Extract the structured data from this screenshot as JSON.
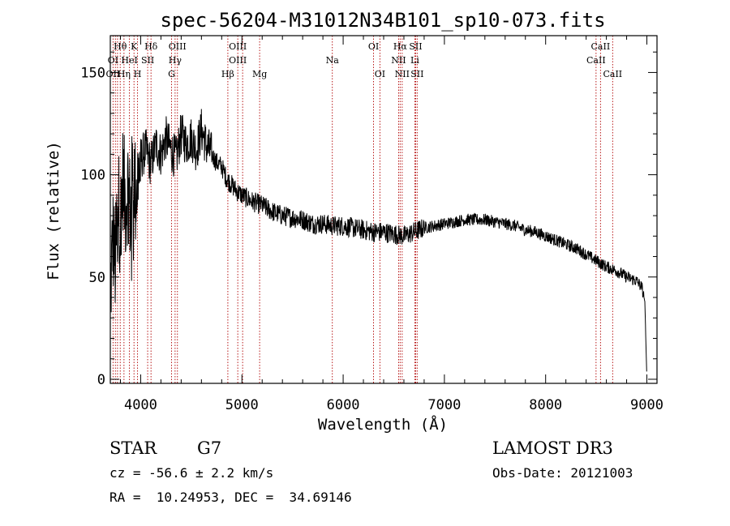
{
  "chart_data": {
    "type": "line",
    "title": "spec-56204-M31012N34B101_sp10-073.fits",
    "xlabel": "Wavelength (Å)",
    "ylabel": "Flux (relative)",
    "xlim": [
      3700,
      9100
    ],
    "ylim": [
      -2,
      168
    ],
    "xticks": [
      4000,
      5000,
      6000,
      7000,
      8000,
      9000
    ],
    "yticks": [
      0,
      50,
      100,
      150
    ],
    "grid": false,
    "series": [
      {
        "name": "flux",
        "color": "#000000",
        "x": [
          3700,
          3725,
          3750,
          3775,
          3800,
          3825,
          3850,
          3875,
          3900,
          3925,
          3950,
          3975,
          4000,
          4050,
          4100,
          4150,
          4200,
          4250,
          4300,
          4350,
          4400,
          4450,
          4500,
          4550,
          4600,
          4650,
          4700,
          4750,
          4800,
          4850,
          4900,
          4950,
          5000,
          5100,
          5200,
          5300,
          5400,
          5500,
          5600,
          5700,
          5800,
          5900,
          6000,
          6100,
          6200,
          6300,
          6400,
          6500,
          6600,
          6700,
          6800,
          6900,
          7000,
          7100,
          7200,
          7300,
          7400,
          7500,
          7600,
          7700,
          7800,
          7900,
          8000,
          8100,
          8200,
          8300,
          8400,
          8500,
          8600,
          8700,
          8800,
          8900,
          8950,
          8980,
          9000
        ],
        "y": [
          40,
          70,
          55,
          90,
          75,
          100,
          85,
          95,
          80,
          105,
          90,
          100,
          108,
          112,
          105,
          115,
          110,
          118,
          112,
          108,
          120,
          115,
          118,
          112,
          122,
          114,
          110,
          106,
          104,
          98,
          95,
          92,
          90,
          87,
          85,
          82,
          80,
          79,
          78,
          76,
          76,
          75,
          75,
          74,
          73,
          72,
          72,
          71,
          70,
          72,
          74,
          75,
          76,
          77,
          78,
          78,
          78,
          77,
          76,
          75,
          73,
          72,
          70,
          68,
          66,
          64,
          61,
          58,
          55,
          53,
          50,
          48,
          45,
          38,
          0
        ]
      }
    ],
    "line_labels": [
      {
        "label": "Hθ",
        "wavelength": 3798,
        "row": 0
      },
      {
        "label": "K",
        "wavelength": 3934,
        "row": 0
      },
      {
        "label": "Hδ",
        "wavelength": 4102,
        "row": 0
      },
      {
        "label": "OIII",
        "wavelength": 4363,
        "row": 0
      },
      {
        "label": "OIII",
        "wavelength": 4959,
        "row": 0
      },
      {
        "label": "OI",
        "wavelength": 6300,
        "row": 0
      },
      {
        "label": "Hα",
        "wavelength": 6563,
        "row": 0
      },
      {
        "label": "SII",
        "wavelength": 6716,
        "row": 0
      },
      {
        "label": "CaII",
        "wavelength": 8542,
        "row": 0
      },
      {
        "label": "OI",
        "wavelength": 3727,
        "row": 1
      },
      {
        "label": "HeI",
        "wavelength": 3889,
        "row": 1
      },
      {
        "label": "SII",
        "wavelength": 4069,
        "row": 1
      },
      {
        "label": "Hγ",
        "wavelength": 4340,
        "row": 1
      },
      {
        "label": "OIII",
        "wavelength": 4959,
        "row": 1
      },
      {
        "label": "Na",
        "wavelength": 5893,
        "row": 1
      },
      {
        "label": "NII",
        "wavelength": 6548,
        "row": 1
      },
      {
        "label": "Li",
        "wavelength": 6708,
        "row": 1
      },
      {
        "label": "CaII",
        "wavelength": 8498,
        "row": 1
      },
      {
        "label": "OII",
        "wavelength": 3727,
        "row": 2
      },
      {
        "label": "Hη",
        "wavelength": 3835,
        "row": 2
      },
      {
        "label": "H",
        "wavelength": 3969,
        "row": 2
      },
      {
        "label": "G",
        "wavelength": 4305,
        "row": 2
      },
      {
        "label": "Hβ",
        "wavelength": 4861,
        "row": 2
      },
      {
        "label": "Mg",
        "wavelength": 5175,
        "row": 2
      },
      {
        "label": "OI",
        "wavelength": 6363,
        "row": 2
      },
      {
        "label": "NII",
        "wavelength": 6583,
        "row": 2
      },
      {
        "label": "SII",
        "wavelength": 6731,
        "row": 2
      },
      {
        "label": "CaII",
        "wavelength": 8662,
        "row": 2
      }
    ],
    "line_markers": [
      3727,
      3750,
      3771,
      3798,
      3835,
      3889,
      3934,
      3969,
      4069,
      4102,
      4305,
      4340,
      4363,
      4861,
      4959,
      5007,
      5175,
      5893,
      6300,
      6363,
      6548,
      6563,
      6583,
      6708,
      6716,
      6731,
      8498,
      8542,
      8662
    ]
  },
  "info": {
    "object_class": "STAR",
    "subclass": "G7",
    "survey": "LAMOST DR3",
    "cz_line": "cz = -56.6 ± 2.2 km/s",
    "obs_date_line": "Obs-Date: 20121003",
    "coords_line": "RA =  10.24953, DEC =  34.69146"
  },
  "colors": {
    "axis": "#000000",
    "spectrum": "#000000",
    "line_marker": "#b00000"
  }
}
